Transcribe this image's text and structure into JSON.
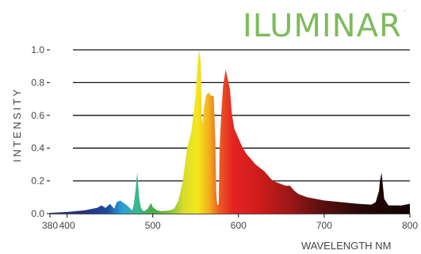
{
  "brand": {
    "logo": "ILUMINAR",
    "trademark": "™"
  },
  "chart_data": {
    "type": "area",
    "title": "",
    "xlabel": "WAVELENGTH NM",
    "ylabel": "INTENSITY",
    "xlim": [
      380,
      800
    ],
    "ylim": [
      0,
      1.0
    ],
    "x_ticks": [
      380,
      400,
      500,
      600,
      700,
      800
    ],
    "y_ticks": [
      0.0,
      0.2,
      0.4,
      0.6,
      0.8,
      1.0
    ],
    "x_tick_labels": [
      "380",
      "400",
      "500",
      "600",
      "700",
      "800"
    ],
    "y_tick_labels": [
      "0.0",
      "0.2",
      "0.4",
      "0.6",
      "0.8",
      "1.0"
    ],
    "grid": true,
    "series": [
      {
        "x": [
          380,
          400,
          410,
          420,
          430,
          435,
          440,
          445,
          450,
          455,
          458,
          462,
          470,
          476,
          478,
          480,
          481,
          482,
          484,
          486,
          488,
          490,
          494,
          498,
          500,
          505,
          510,
          520,
          525,
          530,
          535,
          540,
          545,
          550,
          552,
          554,
          556,
          557,
          558,
          560,
          562,
          565,
          568,
          571,
          573,
          574,
          575,
          576,
          577,
          578,
          580,
          582,
          585,
          590,
          592,
          595,
          600,
          605,
          610,
          620,
          630,
          640,
          650,
          655,
          660,
          665,
          670,
          680,
          700,
          720,
          740,
          755,
          760,
          764,
          765,
          767,
          770,
          775,
          780,
          790,
          800
        ],
        "y": [
          0.005,
          0.01,
          0.015,
          0.02,
          0.03,
          0.035,
          0.05,
          0.035,
          0.06,
          0.03,
          0.07,
          0.08,
          0.05,
          0.02,
          0.06,
          0.15,
          0.21,
          0.25,
          0.1,
          0.04,
          0.02,
          0.015,
          0.03,
          0.065,
          0.04,
          0.02,
          0.015,
          0.02,
          0.03,
          0.08,
          0.2,
          0.4,
          0.5,
          0.72,
          0.9,
          1.0,
          0.93,
          0.6,
          0.55,
          0.66,
          0.72,
          0.74,
          0.72,
          0.72,
          0.45,
          0.14,
          0.06,
          0.05,
          0.06,
          0.4,
          0.62,
          0.78,
          0.88,
          0.76,
          0.62,
          0.52,
          0.46,
          0.4,
          0.36,
          0.3,
          0.26,
          0.2,
          0.18,
          0.17,
          0.17,
          0.14,
          0.12,
          0.1,
          0.08,
          0.07,
          0.06,
          0.055,
          0.07,
          0.14,
          0.2,
          0.25,
          0.09,
          0.05,
          0.05,
          0.05,
          0.06
        ]
      }
    ]
  }
}
